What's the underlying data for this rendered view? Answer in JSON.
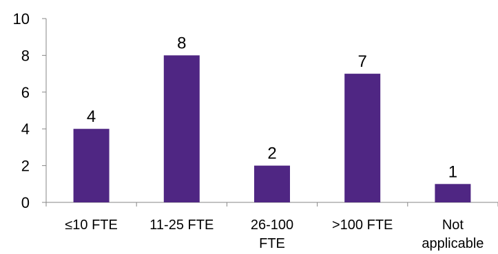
{
  "chart_data": {
    "type": "bar",
    "categories": [
      "≤10 FTE",
      "11-25 FTE",
      "26-100 FTE",
      ">100 FTE",
      "Not applicable"
    ],
    "category_lines": [
      [
        "≤10 FTE"
      ],
      [
        "11-25 FTE"
      ],
      [
        "26-100",
        "FTE"
      ],
      [
        ">100 FTE"
      ],
      [
        "Not",
        "applicable"
      ]
    ],
    "values": [
      4,
      8,
      2,
      7,
      1
    ],
    "data_labels": [
      "4",
      "8",
      "2",
      "7",
      "1"
    ],
    "title": "",
    "xlabel": "",
    "ylabel": "",
    "ylim": [
      0,
      10
    ],
    "yticks": [
      "0",
      "2",
      "4",
      "6",
      "8",
      "10"
    ],
    "grid": false,
    "legend": "none",
    "bar_color": "#4f2683"
  }
}
